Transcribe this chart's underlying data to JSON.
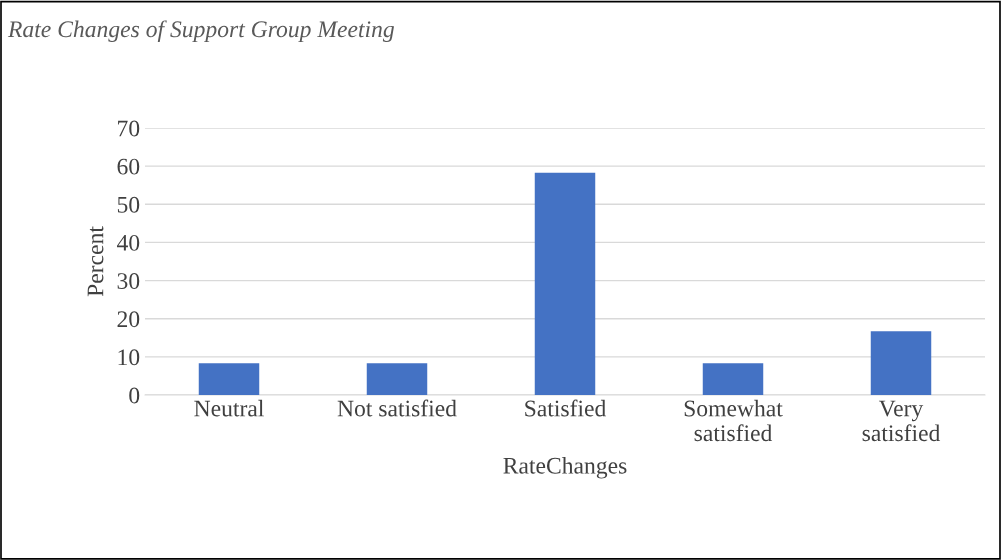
{
  "chart_data": {
    "type": "bar",
    "title": "Rate Changes of Support Group Meeting",
    "xlabel": "RateChanges",
    "ylabel": "Percent",
    "categories": [
      "Neutral",
      "Not satisfied",
      "Satisfied",
      "Somewhat\nsatisfied",
      "Very\nsatisfied"
    ],
    "values": [
      8.3,
      8.3,
      58.3,
      8.3,
      16.7
    ],
    "color": "#4472c4",
    "ylim": [
      0,
      70
    ],
    "yticks": [
      0,
      10,
      20,
      30,
      40,
      50,
      60,
      70
    ],
    "grid": "y",
    "legend": false
  }
}
